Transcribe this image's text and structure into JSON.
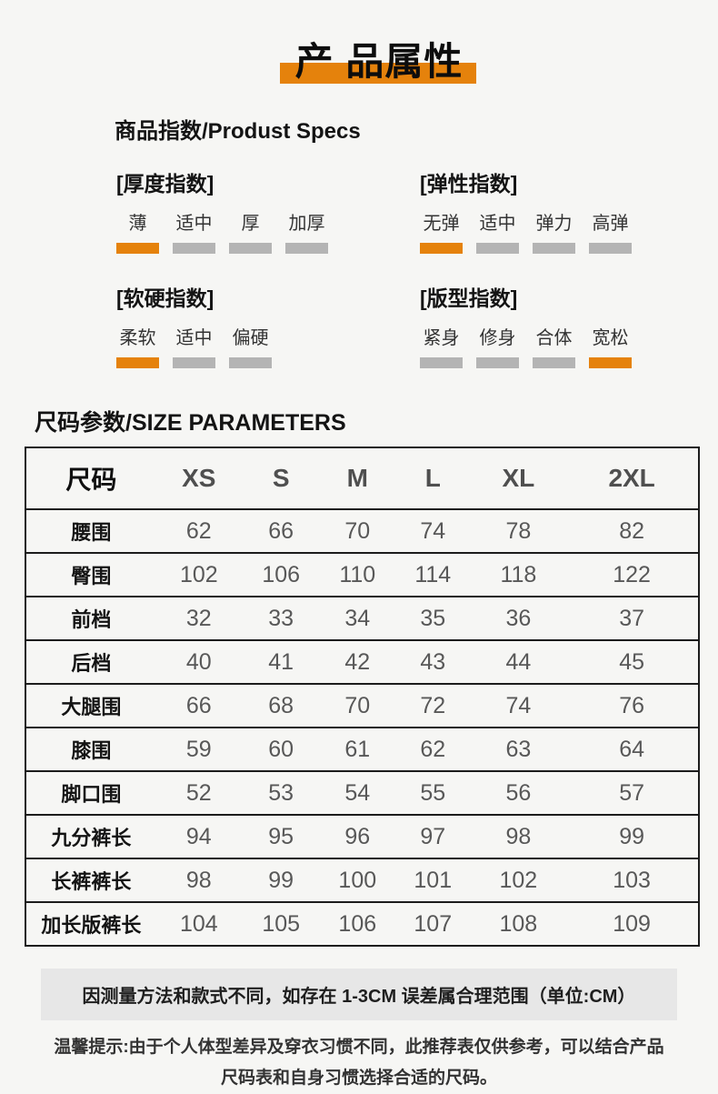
{
  "colors": {
    "accent": "#e5820c",
    "inactive": "#b4b4b4"
  },
  "title": {
    "text": "产 品属性"
  },
  "specs": {
    "heading": "商品指数/Produst Specs",
    "groups": [
      {
        "name": "[厚度指数]",
        "options": [
          {
            "label": "薄",
            "active": true
          },
          {
            "label": "适中",
            "active": false
          },
          {
            "label": "厚",
            "active": false
          },
          {
            "label": "加厚",
            "active": false
          }
        ]
      },
      {
        "name": "[弹性指数]",
        "options": [
          {
            "label": "无弹",
            "active": true
          },
          {
            "label": "适中",
            "active": false
          },
          {
            "label": "弹力",
            "active": false
          },
          {
            "label": "高弹",
            "active": false
          }
        ]
      },
      {
        "name": "[软硬指数]",
        "options": [
          {
            "label": "柔软",
            "active": true
          },
          {
            "label": "适中",
            "active": false
          },
          {
            "label": "偏硬",
            "active": false
          }
        ]
      },
      {
        "name": "[版型指数]",
        "options": [
          {
            "label": "紧身",
            "active": false
          },
          {
            "label": "修身",
            "active": false
          },
          {
            "label": "合体",
            "active": false
          },
          {
            "label": "宽松",
            "active": true
          }
        ]
      }
    ]
  },
  "size_section": {
    "heading": "尺码参数/SIZE PARAMETERS",
    "table": {
      "header": [
        "尺码",
        "XS",
        "S",
        "M",
        "L",
        "XL",
        "2XL"
      ],
      "rows": [
        {
          "label": "腰围",
          "values": [
            62,
            66,
            70,
            74,
            78,
            82
          ]
        },
        {
          "label": "臀围",
          "values": [
            102,
            106,
            110,
            114,
            118,
            122
          ]
        },
        {
          "label": "前档",
          "values": [
            32,
            33,
            34,
            35,
            36,
            37
          ]
        },
        {
          "label": "后档",
          "values": [
            40,
            41,
            42,
            43,
            44,
            45
          ]
        },
        {
          "label": "大腿围",
          "values": [
            66,
            68,
            70,
            72,
            74,
            76
          ]
        },
        {
          "label": "膝围",
          "values": [
            59,
            60,
            61,
            62,
            63,
            64
          ]
        },
        {
          "label": "脚口围",
          "values": [
            52,
            53,
            54,
            55,
            56,
            57
          ]
        },
        {
          "label": "九分裤长",
          "values": [
            94,
            95,
            96,
            97,
            98,
            99
          ]
        },
        {
          "label": "长裤裤长",
          "values": [
            98,
            99,
            100,
            101,
            102,
            103
          ]
        },
        {
          "label": "加长版裤长",
          "values": [
            104,
            105,
            106,
            107,
            108,
            109
          ]
        }
      ]
    }
  },
  "notes": {
    "measurement": "因测量方法和款式不同，如存在 1-3CM 误差属合理范围（单位:CM）",
    "tip_line1": "温馨提示:由于个人体型差异及穿衣习惯不同，此推荐表仅供参考，可以结合产品",
    "tip_line2": "尺码表和自身习惯选择合适的尺码。"
  }
}
